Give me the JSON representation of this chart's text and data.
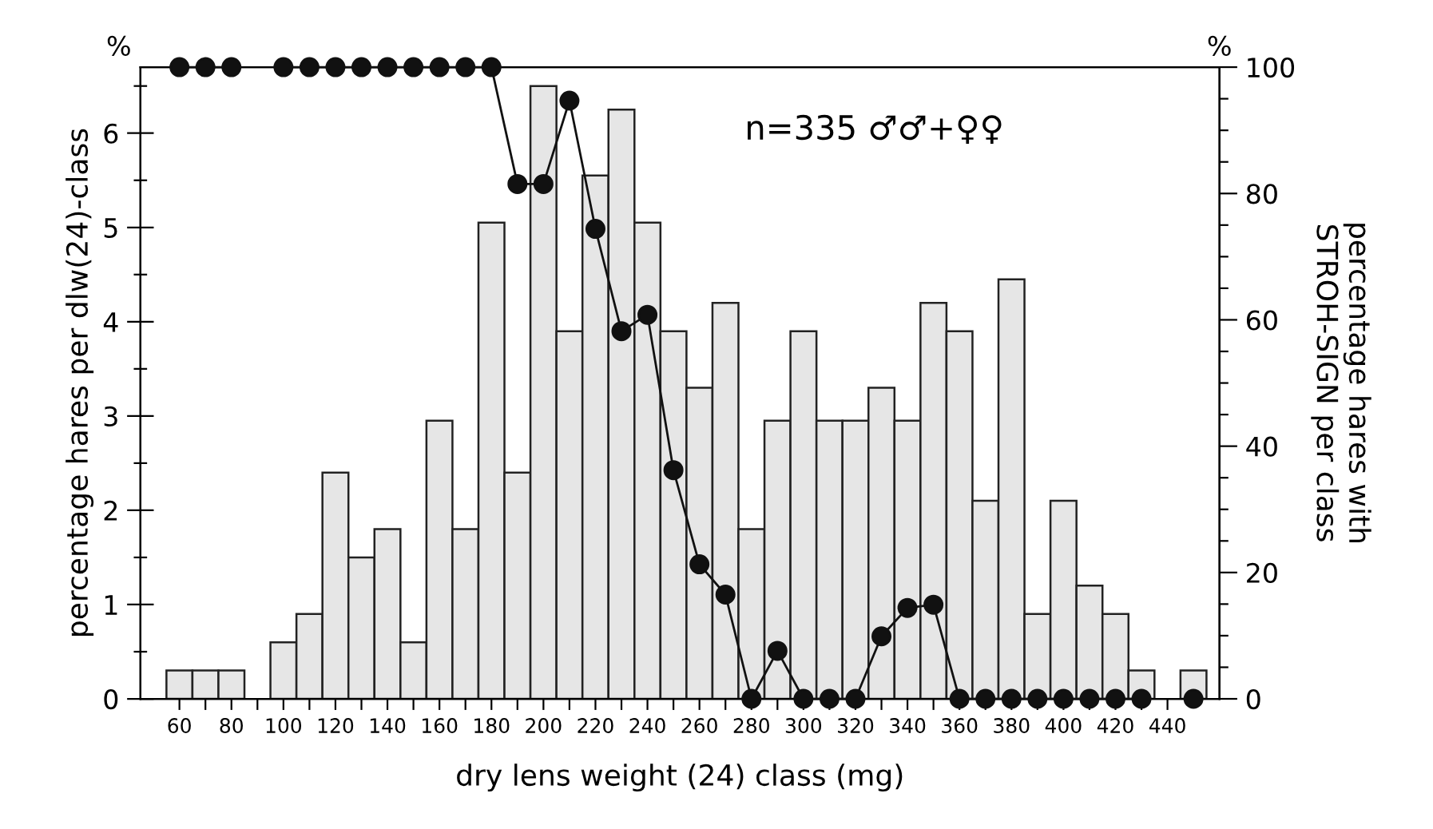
{
  "chart_data": {
    "type": "bar",
    "xlabel": "dry lens weight (24) class (mg)",
    "ylabel": "percentage hares per dlw(24)-class",
    "y2label": "percentage hares with\nSTROH-SIGN per class",
    "annotations": [
      "n=335 ♂♂+♀♀",
      "%",
      "%"
    ],
    "x": [
      60,
      70,
      80,
      90,
      100,
      110,
      120,
      130,
      140,
      150,
      160,
      170,
      180,
      190,
      200,
      210,
      220,
      230,
      240,
      250,
      260,
      270,
      280,
      290,
      300,
      310,
      320,
      330,
      340,
      350,
      360,
      370,
      380,
      390,
      400,
      410,
      420,
      430,
      440,
      450
    ],
    "series": [
      {
        "color": "#e6e6e6",
        "values": [
          0.3,
          0.3,
          0.3,
          null,
          0.6,
          0.9,
          2.4,
          1.5,
          1.8,
          0.6,
          2.95,
          1.8,
          5.05,
          2.4,
          6.5,
          3.9,
          5.55,
          6.25,
          5.05,
          3.9,
          3.3,
          4.2,
          1.8,
          2.95,
          3.9,
          2.95,
          2.95,
          3.3,
          2.95,
          4.2,
          3.9,
          2.1,
          4.45,
          0.9,
          2.1,
          1.2,
          0.9,
          0.3,
          null,
          0.3
        ]
      },
      {
        "type": "line",
        "axis": "y2",
        "color": "#111111",
        "marker": "circle",
        "line_style": "solid",
        "values": [
          100,
          100,
          100,
          null,
          100,
          100,
          100,
          100,
          100,
          100,
          100,
          100,
          100,
          81.5,
          81.5,
          94.7,
          74.4,
          58.2,
          60.8,
          36.2,
          21.3,
          16.5,
          0,
          7.6,
          0,
          0,
          0,
          9.9,
          14.4,
          14.9,
          0,
          0,
          0,
          0,
          0,
          0,
          0,
          0,
          null,
          0
        ]
      }
    ],
    "xlim": [
      45,
      460
    ],
    "xticks": [
      60,
      {
        "value": 70,
        "label": null
      },
      80,
      {
        "value": 90,
        "label": null
      },
      100,
      {
        "value": 110,
        "label": null
      },
      120,
      {
        "value": 130,
        "label": null
      },
      140,
      {
        "value": 150,
        "label": null
      },
      160,
      {
        "value": 170,
        "label": null
      },
      180,
      {
        "value": 190,
        "label": null
      },
      200,
      {
        "value": 210,
        "label": null
      },
      220,
      {
        "value": 230,
        "label": null
      },
      240,
      {
        "value": 250,
        "label": null
      },
      260,
      {
        "value": 270,
        "label": null
      },
      280,
      {
        "value": 290,
        "label": null
      },
      300,
      {
        "value": 310,
        "label": null
      },
      320,
      {
        "value": 330,
        "label": null
      },
      340,
      {
        "value": 350,
        "label": null
      },
      360,
      {
        "value": 370,
        "label": null
      },
      380,
      {
        "value": 390,
        "label": null
      },
      400,
      {
        "value": 410,
        "label": null
      },
      420,
      {
        "value": 430,
        "label": null
      },
      440
    ],
    "ylim": [
      0,
      6.7
    ],
    "yticks": [
      0,
      {
        "value": 0.5,
        "label": null
      },
      1,
      {
        "value": 1.5,
        "label": null
      },
      2,
      {
        "value": 2.5,
        "label": null
      },
      3,
      {
        "value": 3.5,
        "label": null
      },
      4,
      {
        "value": 4.5,
        "label": null
      },
      5,
      {
        "value": 5.5,
        "label": null
      },
      6,
      {
        "value": 6.5,
        "label": null
      }
    ],
    "y2lim": [
      0,
      100
    ],
    "y2ticks": [
      0,
      {
        "value": 5,
        "label": null
      },
      {
        "value": 10,
        "label": null
      },
      {
        "value": 15,
        "label": null
      },
      20,
      {
        "value": 25,
        "label": null
      },
      {
        "value": 30,
        "label": null
      },
      {
        "value": 35,
        "label": null
      },
      40,
      {
        "value": 45,
        "label": null
      },
      {
        "value": 50,
        "label": null
      },
      {
        "value": 55,
        "label": null
      },
      60,
      {
        "value": 65,
        "label": null
      },
      {
        "value": 70,
        "label": null
      },
      {
        "value": 75,
        "label": null
      },
      80,
      {
        "value": 85,
        "label": null
      },
      {
        "value": 90,
        "label": null
      },
      {
        "value": 95,
        "label": null
      },
      100
    ],
    "grid": false,
    "legend": false
  }
}
